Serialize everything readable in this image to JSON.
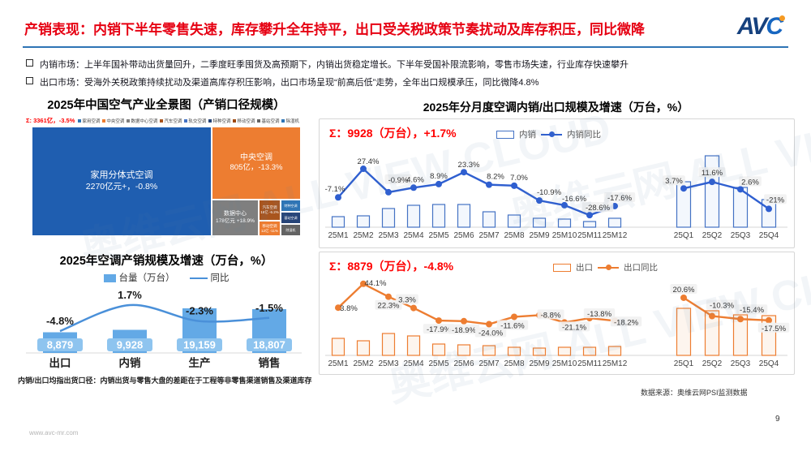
{
  "page": {
    "title": "产销表现：内销下半年零售失速，库存攀升全年持平，出口受关税政策节奏扰动及库存积压，同比微降",
    "logo": {
      "text_av": "AV",
      "text_c": "C"
    },
    "bullets": [
      {
        "text": "内销市场：上半年国补带动出货量回升，二季度旺季囤货及高预期下，内销出货稳定增长。下半年受国补限流影响，零售市场失速，行业库存快速攀升"
      },
      {
        "text": "出口市场：受海外关税政策持续扰动及渠道高库存积压影响，出口市场呈现“前高后低”走势，全年出口规模承压，同比微降4.8%"
      }
    ],
    "right_panel_title": "2025年分月度空调内销/出口规模及增速（万台，%）",
    "source_note": "数据来源：奥维云网PSI监测数据",
    "page_number": "9",
    "site_url": "www.avc-mr.com",
    "watermark_text": "奥维云网 ALL VIEW CLOUD"
  },
  "chart_data": [
    {
      "id": "industry_treemap",
      "type": "treemap",
      "title": "2025年中国空气产业全景图（产销口径规模）",
      "total_label": "Σ: 3361亿，-3.5%",
      "legend": [
        "家用空调",
        "中央空调",
        "数据中心空调",
        "汽车空调",
        "轨交空调",
        "特种空调",
        "移动空调",
        "基站空调",
        "除湿机"
      ],
      "legend_colors": [
        "#2e75b6",
        "#ed7d31",
        "#7f7f7f",
        "#a9551e",
        "#4472c4",
        "#264478",
        "#9e480e",
        "#636363",
        "#2e75b6"
      ],
      "blocks": [
        {
          "name": "家用分体式空调",
          "value_label": "2270亿元+，-0.8%",
          "color": "#1f5eb0"
        },
        {
          "name": "中央空调",
          "value_label": "805亿，-13.3%",
          "color": "#ed7d31"
        },
        {
          "name": "数据中心",
          "value_label": "178亿元 +18.9%",
          "color": "#7f7f7f"
        },
        {
          "name": "汽车空调",
          "value_label": "16亿 -6.2%",
          "color": "#a9551e"
        },
        {
          "name": "移动空调",
          "value_label": "12亿 -11%",
          "color": "#ed7d31"
        },
        {
          "name": "特种空调",
          "value_label": "9亿",
          "color": "#2e75b6"
        },
        {
          "name": "基站空调",
          "value_label": "7亿",
          "color": "#264478"
        },
        {
          "name": "除湿机",
          "value_label": "5亿",
          "color": "#636363"
        }
      ]
    },
    {
      "id": "production_sales_scale",
      "type": "bar",
      "title": "2025年空调产销规模及增速（万台，%）",
      "legend": [
        "台量（万台）",
        "同比"
      ],
      "categories": [
        "出口",
        "内销",
        "生产",
        "销售"
      ],
      "values": [
        8879,
        9928,
        19159,
        18807
      ],
      "value_labels": [
        "8,879",
        "9,928",
        "19,159",
        "18,807"
      ],
      "growth_pct": [
        -4.8,
        1.7,
        -2.3,
        -1.5
      ],
      "growth_labels": [
        "-4.8%",
        "1.7%",
        "-2.3%",
        "-1.5%"
      ],
      "footnote": "内销/出口均指出货口径：内销出货与零售大盘的差距在于工程等非零售渠道销售及渠道库存",
      "bar_color": "#63a9e6",
      "line_color": "#4a90d9",
      "ylabel": "",
      "xlabel": ""
    },
    {
      "id": "domestic_monthly",
      "type": "bar",
      "sum_label": "Σ：9928（万台），+1.7%",
      "legend": [
        "内销",
        "内销同比"
      ],
      "monthly": {
        "categories": [
          "25M1",
          "25M2",
          "25M3",
          "25M4",
          "25M5",
          "25M6",
          "25M7",
          "25M8",
          "25M9",
          "25M10",
          "25M11",
          "25M12"
        ],
        "growth_pct": [
          -7.1,
          27.4,
          -0.9,
          4.6,
          8.9,
          23.3,
          8.2,
          7.0,
          -10.9,
          -16.6,
          -28.6,
          -17.6
        ],
        "growth_labels": [
          "-7.1%",
          "27.4%",
          "-0.9%",
          "4.6%",
          "8.9%",
          "23.3%",
          "8.2%",
          "7.0%",
          "-10.9%",
          "-16.6%",
          "-28.6%",
          "-17.6%"
        ],
        "bar_heights_rel": [
          13,
          14,
          23,
          27,
          28,
          28,
          19,
          15,
          11,
          10,
          7,
          11
        ]
      },
      "quarterly": {
        "categories": [
          "25Q1",
          "25Q2",
          "25Q3",
          "25Q4"
        ],
        "growth_pct": [
          3.7,
          11.6,
          2.6,
          -21
        ],
        "growth_labels": [
          "3.7%",
          "11.6%",
          "2.6%",
          "-21%"
        ],
        "bar_heights_rel": [
          56,
          88,
          49,
          34
        ]
      },
      "bar_outline_color": "#4472c4",
      "line_color": "#2f5fd0"
    },
    {
      "id": "export_monthly",
      "type": "bar",
      "sum_label": "Σ：8879（万台），-4.8%",
      "legend": [
        "出口",
        "出口同比"
      ],
      "monthly": {
        "categories": [
          "25M1",
          "25M2",
          "25M3",
          "25M4",
          "25M5",
          "25M6",
          "25M7",
          "25M8",
          "25M9",
          "25M10",
          "25M11",
          "25M12"
        ],
        "growth_pct": [
          3.8,
          44.1,
          22.3,
          3.3,
          -17.9,
          -18.9,
          -24.0,
          -11.6,
          -8.8,
          -21.1,
          -13.8,
          -18.2
        ],
        "growth_labels": [
          "3.8%",
          "44.1%",
          "22.3%",
          "3.3%",
          "-17.9%",
          "-18.9%",
          "-24.0%",
          "-11.6%",
          "-8.8%",
          "-21.1%",
          "-13.8%",
          "-18.2%"
        ],
        "bar_heights_rel": [
          21,
          18,
          27,
          24,
          14,
          13,
          12,
          10,
          9,
          10,
          10,
          11
        ]
      },
      "quarterly": {
        "categories": [
          "25Q1",
          "25Q2",
          "25Q3",
          "25Q4"
        ],
        "growth_pct": [
          20.6,
          -10.3,
          -15.4,
          -17.5
        ],
        "growth_labels": [
          "20.6%",
          "-10.3%",
          "-15.4%",
          "-17.5%"
        ],
        "bar_heights_rel": [
          58,
          55,
          50,
          49
        ]
      },
      "bar_outline_color": "#ed7d31",
      "line_color": "#ed7d31"
    }
  ]
}
